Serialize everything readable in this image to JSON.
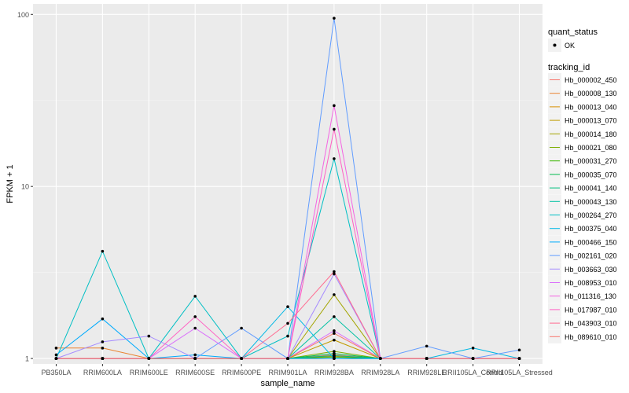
{
  "chart_data": {
    "type": "line",
    "ylabel": "FPKM + 1",
    "xlabel": "sample_name",
    "y_scale": "log10",
    "ylim": [
      0.93,
      115
    ],
    "y_ticks": [
      1,
      10,
      100
    ],
    "categories": [
      "PB350LA",
      "RRIM600LA",
      "RRIM600LE",
      "RRIM600SE",
      "RRIM600PE",
      "RRIM901LA",
      "RRIM928BA",
      "RRIM928LA",
      "RRIM928LE",
      "RRII105LA_Control",
      "RRII105LA_Stressed"
    ],
    "series": [
      {
        "name": "Hb_000002_450",
        "color": "#F8766D",
        "values": [
          1.0,
          1.0,
          1.0,
          1.0,
          1.0,
          1.0,
          1.05,
          1.0,
          1.0,
          1.0,
          1.0
        ]
      },
      {
        "name": "Hb_000008_130",
        "color": "#EA8331",
        "values": [
          1.15,
          1.15,
          1.0,
          1.0,
          1.0,
          1.0,
          1.0,
          1.0,
          1.0,
          1.0,
          1.0
        ]
      },
      {
        "name": "Hb_000013_040",
        "color": "#D89000",
        "values": [
          1.0,
          1.0,
          1.0,
          1.0,
          1.0,
          1.0,
          1.03,
          1.0,
          1.0,
          1.0,
          1.0
        ]
      },
      {
        "name": "Hb_000013_070",
        "color": "#C09B00",
        "values": [
          1.0,
          1.0,
          1.0,
          1.0,
          1.0,
          1.0,
          1.28,
          1.0,
          1.0,
          1.0,
          1.0
        ]
      },
      {
        "name": "Hb_000014_180",
        "color": "#A3A500",
        "values": [
          1.0,
          1.0,
          1.0,
          1.0,
          1.0,
          1.0,
          2.35,
          1.0,
          1.0,
          1.0,
          1.0
        ]
      },
      {
        "name": "Hb_000021_080",
        "color": "#7CAE00",
        "values": [
          1.0,
          1.0,
          1.0,
          1.0,
          1.0,
          1.0,
          1.1,
          1.0,
          1.0,
          1.0,
          1.0
        ]
      },
      {
        "name": "Hb_000031_270",
        "color": "#39B600",
        "values": [
          1.0,
          1.0,
          1.0,
          1.0,
          1.0,
          1.0,
          1.02,
          1.0,
          1.0,
          1.0,
          1.0
        ]
      },
      {
        "name": "Hb_000035_070",
        "color": "#00BB4E",
        "values": [
          1.0,
          1.0,
          1.0,
          1.0,
          1.0,
          1.0,
          1.07,
          1.0,
          1.0,
          1.0,
          1.0
        ]
      },
      {
        "name": "Hb_000041_140",
        "color": "#00BF7D",
        "values": [
          1.0,
          1.0,
          1.0,
          1.0,
          1.0,
          1.0,
          1.04,
          1.0,
          1.0,
          1.0,
          1.0
        ]
      },
      {
        "name": "Hb_000043_130",
        "color": "#00C1A3",
        "values": [
          1.0,
          1.0,
          1.0,
          1.0,
          1.0,
          1.0,
          1.75,
          1.0,
          1.0,
          1.0,
          1.0
        ]
      },
      {
        "name": "Hb_000264_270",
        "color": "#00BFC4",
        "values": [
          1.0,
          4.2,
          1.0,
          2.3,
          1.0,
          1.35,
          14.5,
          1.0,
          1.0,
          1.0,
          1.0
        ]
      },
      {
        "name": "Hb_000375_040",
        "color": "#00B8E5",
        "values": [
          1.0,
          1.0,
          1.0,
          1.0,
          1.0,
          2.0,
          1.0,
          1.0,
          1.0,
          1.15,
          1.0
        ]
      },
      {
        "name": "Hb_000466_150",
        "color": "#00ABFD",
        "values": [
          1.05,
          1.7,
          1.0,
          1.05,
          1.0,
          1.0,
          1.0,
          1.0,
          1.0,
          1.0,
          1.0
        ]
      },
      {
        "name": "Hb_002161_020",
        "color": "#619CFF",
        "values": [
          1.0,
          1.0,
          1.0,
          1.0,
          1.5,
          1.0,
          95.0,
          1.0,
          1.18,
          1.0,
          1.12
        ]
      },
      {
        "name": "Hb_003663_030",
        "color": "#A58AFF",
        "values": [
          1.0,
          1.25,
          1.35,
          1.0,
          1.0,
          1.0,
          3.1,
          1.0,
          1.0,
          1.0,
          1.0
        ]
      },
      {
        "name": "Hb_008953_010",
        "color": "#DB72FB",
        "values": [
          1.0,
          1.0,
          1.0,
          1.5,
          1.0,
          1.0,
          1.45,
          1.0,
          1.0,
          1.0,
          1.0
        ]
      },
      {
        "name": "Hb_011316_130",
        "color": "#F564E3",
        "values": [
          1.0,
          1.0,
          1.0,
          1.0,
          1.0,
          1.0,
          29.5,
          1.0,
          1.0,
          1.0,
          1.0
        ]
      },
      {
        "name": "Hb_017987_010",
        "color": "#FF61C3",
        "values": [
          1.0,
          1.0,
          1.0,
          1.75,
          1.0,
          1.0,
          21.5,
          1.0,
          1.0,
          1.0,
          1.0
        ]
      },
      {
        "name": "Hb_043903_010",
        "color": "#FF6C91",
        "values": [
          1.0,
          1.0,
          1.0,
          1.0,
          1.0,
          1.6,
          3.2,
          1.0,
          1.0,
          1.0,
          1.0
        ]
      },
      {
        "name": "Hb_089610_010",
        "color": "#F8766D",
        "values": [
          1.0,
          1.0,
          1.0,
          1.0,
          1.0,
          1.0,
          1.4,
          1.0,
          1.0,
          1.0,
          1.0
        ]
      }
    ],
    "legend": {
      "position": "right",
      "quant_title": "quant_status",
      "quant_items": [
        "OK"
      ],
      "tracking_title": "tracking_id"
    },
    "grid": true
  }
}
